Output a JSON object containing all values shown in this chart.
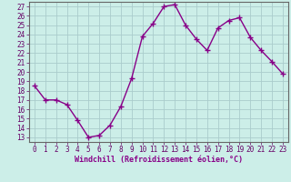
{
  "x": [
    0,
    1,
    2,
    3,
    4,
    5,
    6,
    7,
    8,
    9,
    10,
    11,
    12,
    13,
    14,
    15,
    16,
    17,
    18,
    19,
    20,
    21,
    22,
    23
  ],
  "y": [
    18.5,
    17.0,
    17.0,
    16.5,
    14.8,
    13.0,
    13.2,
    14.3,
    16.3,
    19.3,
    23.8,
    25.2,
    27.0,
    27.2,
    25.0,
    23.5,
    22.3,
    24.7,
    25.5,
    25.8,
    23.7,
    22.3,
    21.1,
    19.8
  ],
  "line_color": "#880088",
  "marker": "+",
  "marker_size": 4,
  "linewidth": 1.0,
  "xlabel": "Windchill (Refroidissement éolien,°C)",
  "xlabel_fontsize": 6.0,
  "yticks": [
    13,
    14,
    15,
    16,
    17,
    18,
    19,
    20,
    21,
    22,
    23,
    24,
    25,
    26,
    27
  ],
  "xlim": [
    -0.5,
    23.5
  ],
  "ylim": [
    12.5,
    27.5
  ],
  "bg_color": "#cceee8",
  "grid_color": "#aacccc",
  "tick_fontsize": 5.5
}
